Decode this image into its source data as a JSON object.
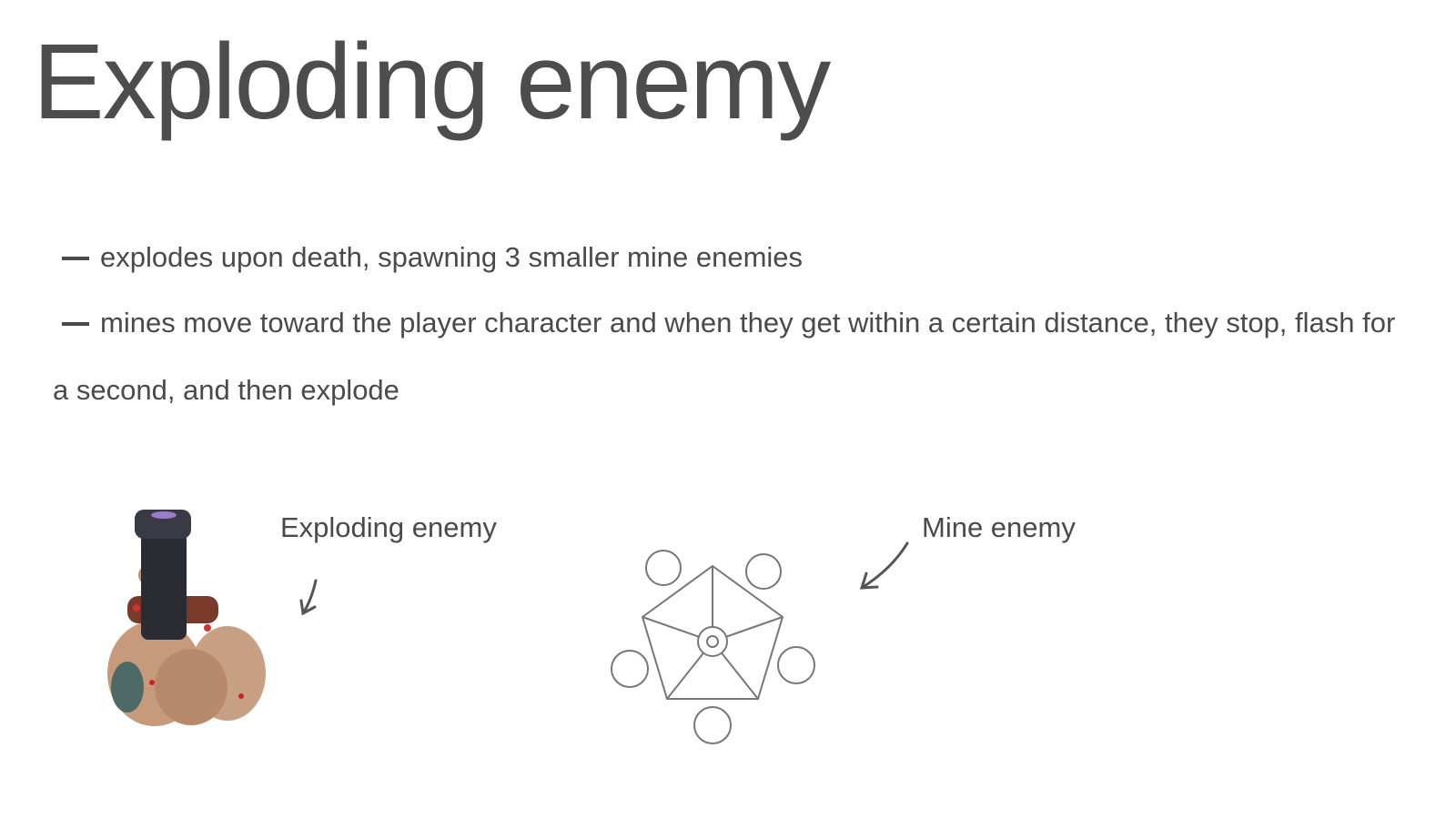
{
  "title": "Exploding enemy",
  "bullets": [
    "explodes upon death, spawning 3 smaller mine enemies",
    "mines move toward the player character and when they get within a certain distance, they stop, flash for a second, and then explode"
  ],
  "figures": [
    {
      "label": "Exploding enemy"
    },
    {
      "label": "Mine enemy"
    }
  ]
}
